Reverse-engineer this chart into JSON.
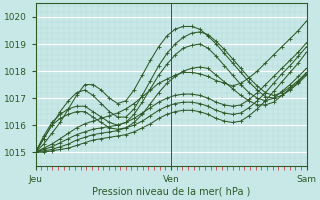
{
  "background_color": "#c8e8e8",
  "plot_bg_color": "#c8e8e8",
  "grid_color_major": "#ffffff",
  "line_color": "#2d5a27",
  "tick_color": "#cc4444",
  "text_color": "#2d5a27",
  "xlabel": "Pression niveau de la mer( hPa )",
  "xlim": [
    0,
    48
  ],
  "ylim": [
    1014.5,
    1020.5
  ],
  "yticks": [
    1015,
    1016,
    1017,
    1018,
    1019,
    1020
  ],
  "xtick_labels": [
    "Jeu",
    "Ven",
    "Sam"
  ],
  "xtick_positions": [
    0,
    24,
    48
  ],
  "series": [
    [
      1015.0,
      1015.15,
      1015.3,
      1015.5,
      1015.7,
      1015.9,
      1016.05,
      1016.15,
      1016.25,
      1016.35,
      1016.45,
      1016.6,
      1016.8,
      1017.05,
      1017.3,
      1017.55,
      1017.7,
      1017.85,
      1017.95,
      1017.95,
      1017.9,
      1017.8,
      1017.65,
      1017.55,
      1017.45,
      1017.55,
      1017.75,
      1018.0,
      1018.3,
      1018.6,
      1018.9,
      1019.2,
      1019.5,
      1019.85
    ],
    [
      1015.0,
      1015.1,
      1015.2,
      1015.35,
      1015.5,
      1015.65,
      1015.75,
      1015.85,
      1015.9,
      1015.95,
      1016.0,
      1016.1,
      1016.25,
      1016.45,
      1016.65,
      1016.85,
      1017.0,
      1017.1,
      1017.15,
      1017.15,
      1017.1,
      1017.0,
      1016.85,
      1016.75,
      1016.7,
      1016.75,
      1016.95,
      1017.2,
      1017.5,
      1017.8,
      1018.1,
      1018.4,
      1018.7,
      1019.05
    ],
    [
      1015.0,
      1015.05,
      1015.1,
      1015.2,
      1015.3,
      1015.45,
      1015.55,
      1015.65,
      1015.7,
      1015.75,
      1015.8,
      1015.9,
      1016.0,
      1016.15,
      1016.35,
      1016.55,
      1016.7,
      1016.8,
      1016.85,
      1016.85,
      1016.8,
      1016.7,
      1016.55,
      1016.45,
      1016.4,
      1016.45,
      1016.65,
      1016.9,
      1017.2,
      1017.55,
      1017.9,
      1018.2,
      1018.55,
      1018.9
    ],
    [
      1015.0,
      1015.0,
      1015.05,
      1015.1,
      1015.15,
      1015.25,
      1015.35,
      1015.45,
      1015.5,
      1015.55,
      1015.6,
      1015.65,
      1015.75,
      1015.9,
      1016.05,
      1016.25,
      1016.4,
      1016.5,
      1016.55,
      1016.55,
      1016.5,
      1016.4,
      1016.25,
      1016.15,
      1016.1,
      1016.15,
      1016.35,
      1016.6,
      1016.9,
      1017.25,
      1017.6,
      1017.95,
      1018.3,
      1018.7
    ],
    [
      1015.0,
      1015.5,
      1016.0,
      1016.25,
      1016.4,
      1016.5,
      1016.5,
      1016.3,
      1016.1,
      1015.9,
      1015.85,
      1015.9,
      1016.1,
      1016.4,
      1016.8,
      1017.2,
      1017.55,
      1017.8,
      1018.0,
      1018.1,
      1018.15,
      1018.1,
      1017.85,
      1017.6,
      1017.35,
      1017.1,
      1016.9,
      1016.75,
      1016.75,
      1016.85,
      1017.1,
      1017.35,
      1017.6,
      1017.9
    ],
    [
      1015.0,
      1015.6,
      1016.1,
      1016.4,
      1016.6,
      1016.7,
      1016.7,
      1016.5,
      1016.3,
      1016.1,
      1016.0,
      1016.1,
      1016.4,
      1016.85,
      1017.35,
      1017.85,
      1018.25,
      1018.6,
      1018.85,
      1018.95,
      1019.0,
      1018.85,
      1018.55,
      1018.2,
      1017.85,
      1017.5,
      1017.2,
      1017.0,
      1016.9,
      1017.0,
      1017.25,
      1017.5,
      1017.8,
      1018.1
    ],
    [
      1015.0,
      1015.5,
      1016.0,
      1016.5,
      1016.9,
      1017.2,
      1017.3,
      1017.1,
      1016.8,
      1016.5,
      1016.3,
      1016.3,
      1016.6,
      1017.1,
      1017.65,
      1018.2,
      1018.65,
      1019.0,
      1019.25,
      1019.4,
      1019.45,
      1019.35,
      1019.1,
      1018.8,
      1018.45,
      1018.1,
      1017.75,
      1017.45,
      1017.2,
      1017.1,
      1017.2,
      1017.4,
      1017.65,
      1017.95
    ],
    [
      1015.0,
      1015.3,
      1015.7,
      1016.1,
      1016.6,
      1017.1,
      1017.5,
      1017.5,
      1017.3,
      1017.0,
      1016.8,
      1016.9,
      1017.3,
      1017.85,
      1018.4,
      1018.9,
      1019.3,
      1019.55,
      1019.65,
      1019.65,
      1019.55,
      1019.3,
      1019.0,
      1018.65,
      1018.3,
      1017.95,
      1017.6,
      1017.3,
      1017.05,
      1017.0,
      1017.1,
      1017.3,
      1017.55,
      1017.85
    ]
  ]
}
